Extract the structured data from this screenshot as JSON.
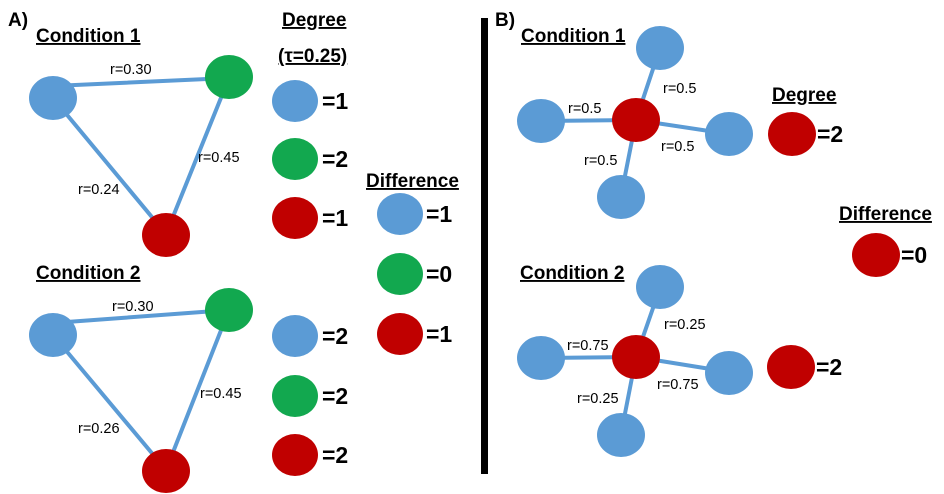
{
  "colors": {
    "blue": "#5b9bd5",
    "green": "#12a84f",
    "red": "#c00000",
    "edge": "#5b9bd5",
    "divider": "#000000"
  },
  "panel_a": {
    "label": "A)",
    "condition1": {
      "title": "Condition 1",
      "edges": {
        "blue_green": "r=0.30",
        "green_red": "r=0.45",
        "blue_red": "r=0.24"
      }
    },
    "condition2": {
      "title": "Condition 2",
      "edges": {
        "blue_green": "r=0.30",
        "green_red": "r=0.45",
        "blue_red": "r=0.26"
      }
    },
    "degree": {
      "title": "Degree",
      "subtitle": "(τ=0.25)",
      "condition1": {
        "blue": "=1",
        "green": "=2",
        "red": "=1"
      },
      "condition2": {
        "blue": "=2",
        "green": "=2",
        "red": "=2"
      }
    },
    "difference": {
      "title": "Difference",
      "blue": "=1",
      "green": "=0",
      "red": "=1"
    }
  },
  "panel_b": {
    "label": "B)",
    "condition1": {
      "title": "Condition 1",
      "edges": {
        "top": "r=0.5",
        "left": "r=0.5",
        "right": "r=0.5",
        "bottom": "r=0.5"
      }
    },
    "condition2": {
      "title": "Condition 2",
      "edges": {
        "top": "r=0.25",
        "left": "r=0.75",
        "right": "r=0.75",
        "bottom": "r=0.25"
      }
    },
    "degree": {
      "title": "Degree",
      "condition1_red": "=2",
      "condition2_red": "=2"
    },
    "difference": {
      "title": "Difference",
      "red": "=0"
    }
  }
}
